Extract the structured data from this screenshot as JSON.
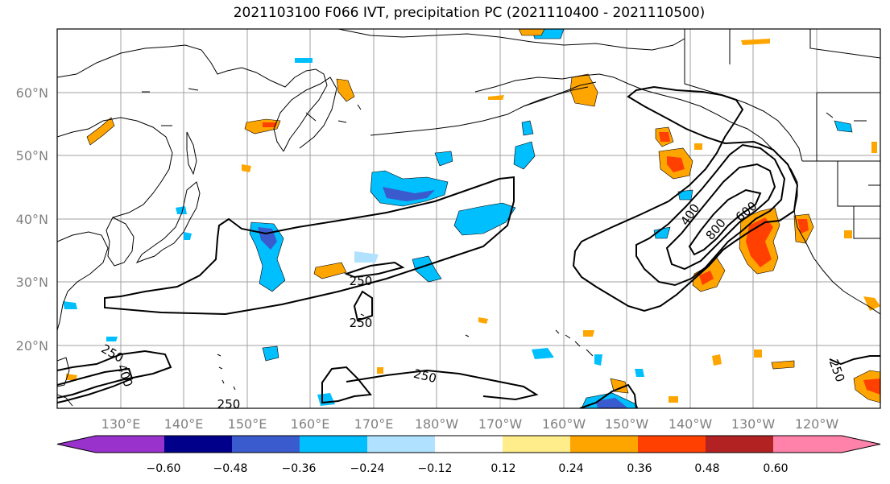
{
  "title": "2021103100 F066 IVT, precipitation PC (2021110400 - 2021110500)",
  "lat_labels": [
    "60°N",
    "50°N",
    "40°N",
    "30°N",
    "20°N"
  ],
  "lon_labels": [
    "130°E",
    "140°E",
    "150°E",
    "160°E",
    "170°E",
    "180°W",
    "170°W",
    "160°W",
    "150°W",
    "140°W",
    "130°W",
    "120°W"
  ],
  "contour_labels": [
    "250",
    "250",
    "250",
    "250",
    "250",
    "400",
    "400",
    "600",
    "800"
  ],
  "colorbar": {
    "colors": [
      "#9932cc",
      "#00008b",
      "#3a5bcd",
      "#00bfff",
      "#b0e2ff",
      "#ffffff",
      "#ffec8b",
      "#ffa500",
      "#ff4000",
      "#b22222",
      "#ff82ab"
    ],
    "tick_labels": [
      "−0.60",
      "−0.48",
      "−0.36",
      "−0.24",
      "−0.12",
      "0.12",
      "0.24",
      "0.36",
      "0.48",
      "0.60"
    ]
  },
  "colors": {
    "grid": "#a0a0a0",
    "coast": "#000000",
    "contour": "#000000"
  }
}
